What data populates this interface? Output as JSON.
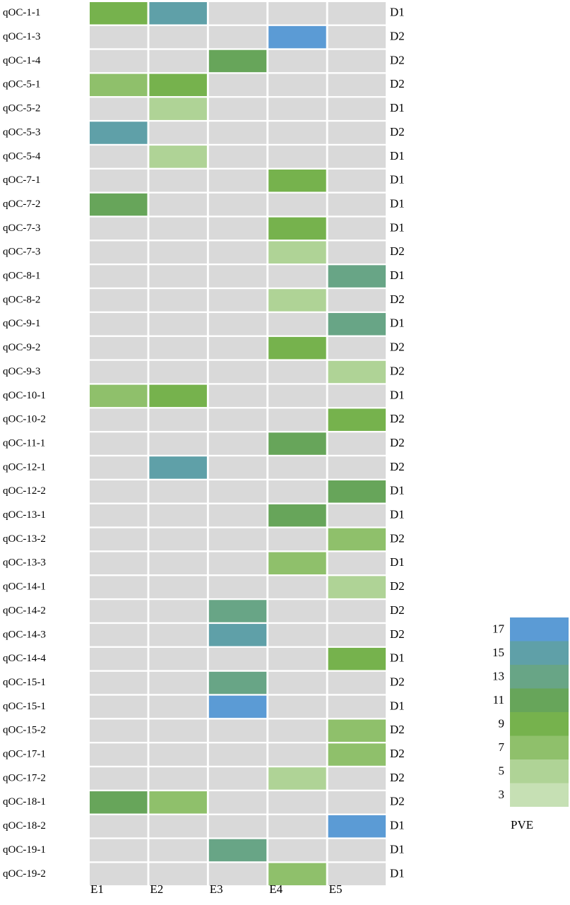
{
  "chart_data": {
    "type": "heatmap",
    "title": "",
    "columns": [
      "E1",
      "E2",
      "E3",
      "E4",
      "E5"
    ],
    "rows": [
      {
        "qtl": "qOC-1-1",
        "group": "D1",
        "values": {
          "E1": 8,
          "E2": 15
        }
      },
      {
        "qtl": "qOC-1-3",
        "group": "D2",
        "values": {
          "E4": 16
        }
      },
      {
        "qtl": "qOC-1-4",
        "group": "D2",
        "values": {
          "E3": 10
        }
      },
      {
        "qtl": "qOC-5-1",
        "group": "D2",
        "values": {
          "E1": 6,
          "E2": 9
        }
      },
      {
        "qtl": "qOC-5-2",
        "group": "D1",
        "values": {
          "E2": 5
        }
      },
      {
        "qtl": "qOC-5-3",
        "group": "D2",
        "values": {
          "E1": 15
        }
      },
      {
        "qtl": "qOC-5-4",
        "group": "D1",
        "values": {
          "E2": 5
        }
      },
      {
        "qtl": "qOC-7-1",
        "group": "D1",
        "values": {
          "E4": 8
        }
      },
      {
        "qtl": "qOC-7-2",
        "group": "D1",
        "values": {
          "E1": 10
        }
      },
      {
        "qtl": "qOC-7-3",
        "group": "D1",
        "values": {
          "E4": 8
        }
      },
      {
        "qtl": "qOC-7-3",
        "group": "D2",
        "values": {
          "E4": 4
        }
      },
      {
        "qtl": "qOC-8-1",
        "group": "D1",
        "values": {
          "E5": 12
        }
      },
      {
        "qtl": "qOC-8-2",
        "group": "D2",
        "values": {
          "E4": 5
        }
      },
      {
        "qtl": "qOC-9-1",
        "group": "D1",
        "values": {
          "E5": 12
        }
      },
      {
        "qtl": "qOC-9-2",
        "group": "D2",
        "values": {
          "E4": 8
        }
      },
      {
        "qtl": "qOC-9-3",
        "group": "D2",
        "values": {
          "E5": 4
        }
      },
      {
        "qtl": "qOC-10-1",
        "group": "D1",
        "values": {
          "E1": 6,
          "E2": 8
        }
      },
      {
        "qtl": "qOC-10-2",
        "group": "D2",
        "values": {
          "E5": 9
        }
      },
      {
        "qtl": "qOC-11-1",
        "group": "D2",
        "values": {
          "E4": 11
        }
      },
      {
        "qtl": "qOC-12-1",
        "group": "D2",
        "values": {
          "E2": 14
        }
      },
      {
        "qtl": "qOC-12-2",
        "group": "D1",
        "values": {
          "E5": 10
        }
      },
      {
        "qtl": "qOC-13-1",
        "group": "D1",
        "values": {
          "E4": 10
        }
      },
      {
        "qtl": "qOC-13-2",
        "group": "D2",
        "values": {
          "E5": 6
        }
      },
      {
        "qtl": "qOC-13-3",
        "group": "D1",
        "values": {
          "E4": 7
        }
      },
      {
        "qtl": "qOC-14-1",
        "group": "D2",
        "values": {
          "E5": 5
        }
      },
      {
        "qtl": "qOC-14-2",
        "group": "D2",
        "values": {
          "E3": 12
        }
      },
      {
        "qtl": "qOC-14-3",
        "group": "D2",
        "values": {
          "E3": 14
        }
      },
      {
        "qtl": "qOC-14-4",
        "group": "D1",
        "values": {
          "E5": 9
        }
      },
      {
        "qtl": "qOC-15-1",
        "group": "D2",
        "values": {
          "E3": 12
        }
      },
      {
        "qtl": "qOC-15-1",
        "group": "D1",
        "values": {
          "E3": 17
        }
      },
      {
        "qtl": "qOC-15-2",
        "group": "D2",
        "values": {
          "E5": 7
        }
      },
      {
        "qtl": "qOC-17-1",
        "group": "D2",
        "values": {
          "E5": 7
        }
      },
      {
        "qtl": "qOC-17-2",
        "group": "D2",
        "values": {
          "E4": 5
        }
      },
      {
        "qtl": "qOC-18-1",
        "group": "D2",
        "values": {
          "E1": 10,
          "E2": 7
        }
      },
      {
        "qtl": "qOC-18-2",
        "group": "D1",
        "values": {
          "E5": 17
        }
      },
      {
        "qtl": "qOC-19-1",
        "group": "D1",
        "values": {
          "E3": 12
        }
      },
      {
        "qtl": "qOC-19-2",
        "group": "D1",
        "values": {
          "E4": 7
        }
      }
    ],
    "legend": {
      "title": "PVE",
      "levels": [
        17,
        15,
        13,
        11,
        9,
        7,
        5,
        3
      ],
      "colors": {
        "17": "#5b9bd5",
        "15": "#5fa0a8",
        "13": "#68a586",
        "11": "#67a55a",
        "9": "#76b24d",
        "7": "#8fc06b",
        "5": "#afd396",
        "3": "#c6e0b4"
      }
    },
    "empty_color": "#d9d9d9",
    "background": "#ffffff"
  }
}
